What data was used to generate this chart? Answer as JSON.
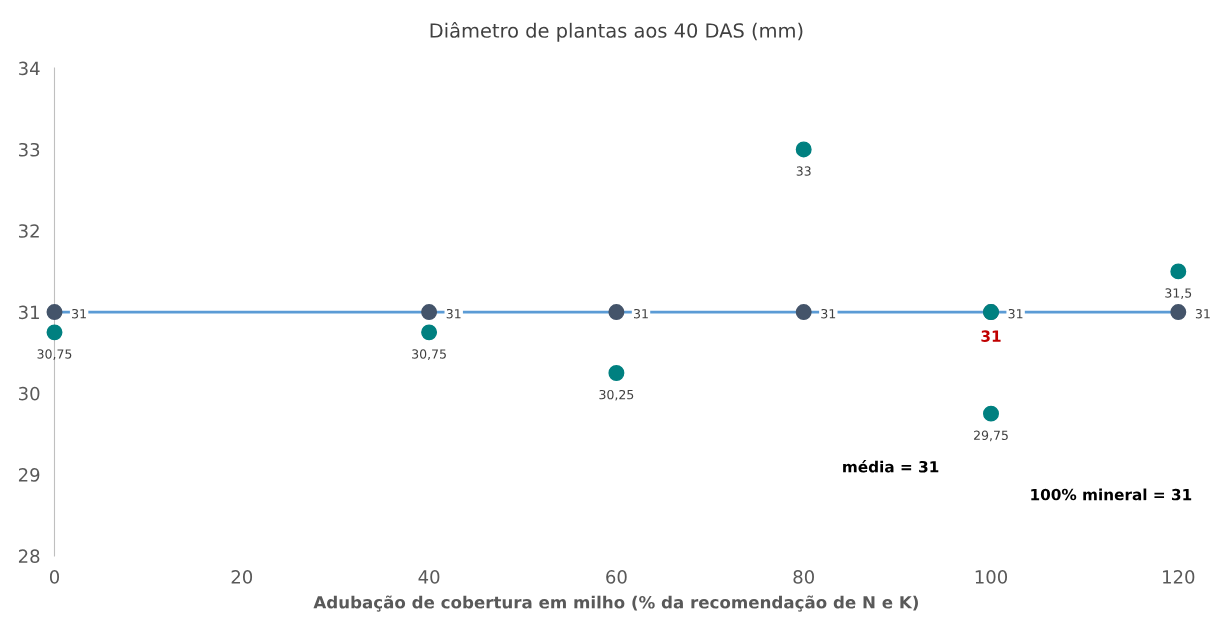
{
  "chart_data": {
    "type": "scatter",
    "title": "Diâmetro de plantas aos 40 DAS (mm)",
    "xlabel": "Adubação de cobertura em milho (% da recomendação de N e K)",
    "x": [
      0,
      40,
      60,
      80,
      100,
      120
    ],
    "series": [
      {
        "color": "#44546a",
        "values": [
          31,
          31,
          31,
          31,
          31,
          31
        ],
        "value_labels": [
          "31",
          "31",
          "31",
          "31",
          "31",
          "31"
        ]
      },
      {
        "color": "#008080",
        "values": [
          30.75,
          30.75,
          30.25,
          33,
          29.75,
          31.5
        ],
        "value_labels": [
          "30,75",
          "30,75",
          "30,25",
          "33",
          "29,75",
          "31,5"
        ]
      },
      {
        "color": "#008080",
        "x": [
          100
        ],
        "values": [
          31
        ],
        "value_labels": [
          "31"
        ]
      }
    ],
    "ref_lines": [
      {
        "axis": "y",
        "value": 31,
        "color": "#5b9bd5"
      }
    ],
    "annotations": [
      "média = 31",
      "100% mineral = 31"
    ],
    "xlim": [
      0,
      120
    ],
    "xticks": [
      0,
      20,
      40,
      60,
      80,
      100,
      120
    ],
    "ylim": [
      28,
      34
    ],
    "yticks": [
      28,
      29,
      30,
      31,
      32,
      33,
      34
    ],
    "marker": "circle",
    "grid": false,
    "legend": false
  }
}
